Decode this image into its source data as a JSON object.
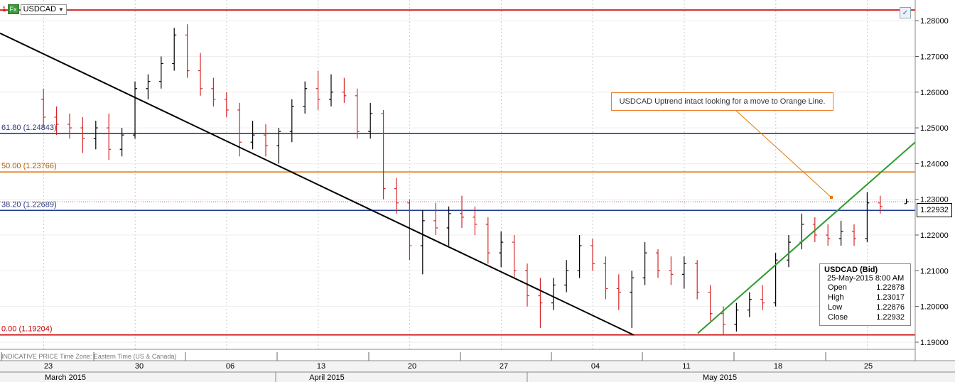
{
  "symbol": {
    "number": "1",
    "badge": "Fx",
    "ticker": "USDCAD",
    "caret": "▼"
  },
  "annotation": {
    "text": "USDCAD Uptrend intact looking for a move to Orange Line."
  },
  "footer": {
    "note": "INDICATIVE PRICE   Time Zone: Eastern Time (US & Canada)"
  },
  "current_price": "1.22932",
  "ohlc": {
    "title": "USDCAD (Bid)",
    "date": "25-May-2015 8:00 AM",
    "rows": [
      {
        "label": "Open",
        "value": "1.22878"
      },
      {
        "label": "High",
        "value": "1.23017"
      },
      {
        "label": "Low",
        "value": "1.22876"
      },
      {
        "label": "Close",
        "value": "1.22932"
      }
    ]
  },
  "colors": {
    "up": "#000000",
    "down": "#d62728",
    "blue_line": "#1f3a93",
    "orange_line": "#e07a10",
    "red_line": "#cc0000",
    "black_trend": "#000000",
    "green_trend": "#2e9a2e",
    "grid": "#c8c8c8"
  },
  "chart_data": {
    "type": "ohlc",
    "y_axis": {
      "ticks": [
        "1.28000",
        "1.27000",
        "1.26000",
        "1.25000",
        "1.24000",
        "1.23000",
        "1.22000",
        "1.21000",
        "1.20000",
        "1.19000"
      ]
    },
    "x_axis": {
      "day_ticks": [
        "23",
        "30",
        "06",
        "13",
        "20",
        "27",
        "04",
        "11",
        "18",
        "25"
      ],
      "months": [
        "March 2015",
        "April 2015",
        "May 2015"
      ]
    },
    "fib_levels": [
      {
        "label": "100",
        "value": 1.283
      },
      {
        "label": "61.80 (1.24843)",
        "value": 1.24843
      },
      {
        "label": "50.00 (1.23766)",
        "value": 1.23766
      },
      {
        "label": "38.20 (1.22689)",
        "value": 1.22689
      },
      {
        "label": "0.00 (1.19204)",
        "value": 1.19204
      }
    ],
    "trendlines": [
      {
        "name": "downtrend",
        "from": [
          "2015-03-20",
          1.277
        ],
        "to": [
          "2015-05-08",
          1.192
        ]
      },
      {
        "name": "uptrend",
        "from": [
          "2015-05-13",
          1.1925
        ],
        "to": [
          "2015-06-01",
          1.246
        ]
      }
    ],
    "candles": [
      [
        "2015-03-20",
        1.258,
        1.261,
        1.25,
        1.253
      ],
      [
        "2015-03-21",
        1.253,
        1.256,
        1.248,
        1.251
      ],
      [
        "2015-03-22",
        1.251,
        1.254,
        1.247,
        1.25
      ],
      [
        "2015-03-23",
        1.25,
        1.253,
        1.243,
        1.247
      ],
      [
        "2015-03-24",
        1.247,
        1.252,
        1.244,
        1.25
      ],
      [
        "2015-03-25",
        1.25,
        1.254,
        1.241,
        1.244
      ],
      [
        "2015-03-26",
        1.244,
        1.25,
        1.242,
        1.248
      ],
      [
        "2015-03-27",
        1.248,
        1.263,
        1.247,
        1.261
      ],
      [
        "2015-03-28",
        1.261,
        1.265,
        1.258,
        1.263
      ],
      [
        "2015-03-29",
        1.263,
        1.27,
        1.261,
        1.268
      ],
      [
        "2015-03-30",
        1.268,
        1.278,
        1.266,
        1.276
      ],
      [
        "2015-03-31",
        1.276,
        1.279,
        1.264,
        1.266
      ],
      [
        "2015-04-01",
        1.266,
        1.271,
        1.259,
        1.261
      ],
      [
        "2015-04-02",
        1.261,
        1.264,
        1.256,
        1.258
      ],
      [
        "2015-04-03",
        1.258,
        1.26,
        1.253,
        1.255
      ],
      [
        "2015-04-04",
        1.255,
        1.257,
        1.242,
        1.246
      ],
      [
        "2015-04-05",
        1.246,
        1.252,
        1.244,
        1.248
      ],
      [
        "2015-04-06",
        1.248,
        1.251,
        1.242,
        1.245
      ],
      [
        "2015-04-07",
        1.245,
        1.25,
        1.24,
        1.249
      ],
      [
        "2015-04-08",
        1.249,
        1.258,
        1.246,
        1.256
      ],
      [
        "2015-04-09",
        1.256,
        1.263,
        1.254,
        1.261
      ],
      [
        "2015-04-10",
        1.261,
        1.266,
        1.255,
        1.258
      ],
      [
        "2015-04-11",
        1.258,
        1.265,
        1.256,
        1.26
      ],
      [
        "2015-04-12",
        1.26,
        1.264,
        1.257,
        1.259
      ],
      [
        "2015-04-13",
        1.259,
        1.261,
        1.247,
        1.249
      ],
      [
        "2015-04-14",
        1.249,
        1.257,
        1.247,
        1.254
      ],
      [
        "2015-04-15",
        1.254,
        1.255,
        1.23,
        1.233
      ],
      [
        "2015-04-16",
        1.233,
        1.236,
        1.226,
        1.229
      ],
      [
        "2015-04-17",
        1.229,
        1.23,
        1.213,
        1.217
      ],
      [
        "2015-04-18",
        1.217,
        1.227,
        1.209,
        1.224
      ],
      [
        "2015-04-19",
        1.224,
        1.229,
        1.22,
        1.222
      ],
      [
        "2015-04-20",
        1.222,
        1.228,
        1.217,
        1.226
      ],
      [
        "2015-04-21",
        1.226,
        1.231,
        1.222,
        1.225
      ],
      [
        "2015-04-22",
        1.225,
        1.228,
        1.22,
        1.223
      ],
      [
        "2015-04-23",
        1.223,
        1.225,
        1.212,
        1.215
      ],
      [
        "2015-04-24",
        1.215,
        1.221,
        1.211,
        1.218
      ],
      [
        "2015-04-25",
        1.218,
        1.22,
        1.208,
        1.21
      ],
      [
        "2015-04-26",
        1.21,
        1.212,
        1.2,
        1.203
      ],
      [
        "2015-04-27",
        1.203,
        1.208,
        1.194,
        1.201
      ],
      [
        "2015-04-28",
        1.201,
        1.208,
        1.199,
        1.206
      ],
      [
        "2015-04-29",
        1.206,
        1.213,
        1.204,
        1.21
      ],
      [
        "2015-04-30",
        1.21,
        1.22,
        1.208,
        1.217
      ],
      [
        "2015-05-01",
        1.217,
        1.219,
        1.21,
        1.212
      ],
      [
        "2015-05-02",
        1.212,
        1.214,
        1.202,
        1.205
      ],
      [
        "2015-05-03",
        1.205,
        1.209,
        1.199,
        1.204
      ],
      [
        "2015-05-04",
        1.204,
        1.21,
        1.194,
        1.208
      ],
      [
        "2015-05-05",
        1.208,
        1.218,
        1.206,
        1.215
      ],
      [
        "2015-05-06",
        1.215,
        1.216,
        1.208,
        1.21
      ],
      [
        "2015-05-07",
        1.21,
        1.214,
        1.206,
        1.209
      ],
      [
        "2015-05-08",
        1.209,
        1.214,
        1.205,
        1.212
      ],
      [
        "2015-05-09",
        1.212,
        1.213,
        1.202,
        1.204
      ],
      [
        "2015-05-10",
        1.204,
        1.206,
        1.196,
        1.198
      ],
      [
        "2015-05-11",
        1.198,
        1.2,
        1.192,
        1.195
      ],
      [
        "2015-05-12",
        1.195,
        1.201,
        1.193,
        1.199
      ],
      [
        "2015-05-13",
        1.199,
        1.204,
        1.197,
        1.202
      ],
      [
        "2015-05-14",
        1.202,
        1.206,
        1.199,
        1.201
      ],
      [
        "2015-05-15",
        1.201,
        1.215,
        1.2,
        1.213
      ],
      [
        "2015-05-16",
        1.213,
        1.22,
        1.211,
        1.218
      ],
      [
        "2015-05-17",
        1.218,
        1.226,
        1.216,
        1.223
      ],
      [
        "2015-05-18",
        1.223,
        1.225,
        1.218,
        1.22
      ],
      [
        "2015-05-19",
        1.22,
        1.223,
        1.217,
        1.219
      ],
      [
        "2015-05-20",
        1.219,
        1.224,
        1.217,
        1.221
      ],
      [
        "2015-05-21",
        1.221,
        1.223,
        1.217,
        1.219
      ],
      [
        "2015-05-22",
        1.219,
        1.232,
        1.218,
        1.229
      ],
      [
        "2015-05-23",
        1.229,
        1.231,
        1.226,
        1.228
      ],
      [
        "2015-05-25",
        1.22878,
        1.23017,
        1.22876,
        1.22932
      ]
    ]
  }
}
